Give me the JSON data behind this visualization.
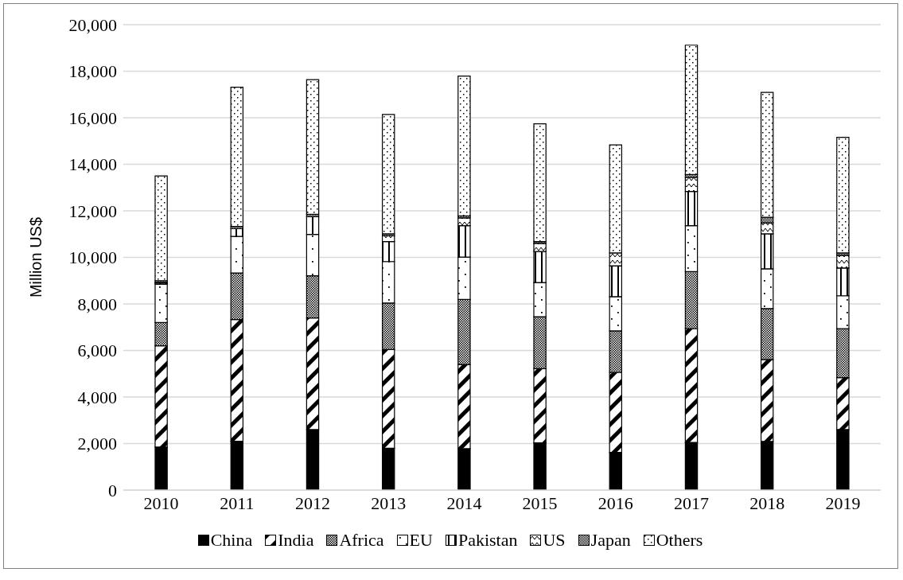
{
  "chart_data": {
    "type": "bar",
    "stacked": true,
    "ylabel": "Million US$",
    "categories": [
      "2010",
      "2011",
      "2012",
      "2013",
      "2014",
      "2015",
      "2016",
      "2017",
      "2018",
      "2019"
    ],
    "series": [
      {
        "name": "China",
        "color": "#000000",
        "values": [
          1850,
          2100,
          2600,
          1800,
          1780,
          2030,
          1620,
          2050,
          2090,
          2600
        ]
      },
      {
        "name": "India",
        "color": "#000000",
        "values": [
          4350,
          5230,
          4800,
          4240,
          3620,
          3190,
          3440,
          4890,
          3520,
          2230
        ]
      },
      {
        "name": "Africa",
        "color": "#000000",
        "values": [
          1000,
          2000,
          1810,
          2000,
          2790,
          2230,
          1780,
          2450,
          2190,
          2110
        ]
      },
      {
        "name": "EU",
        "color": "#000000",
        "values": [
          1650,
          1570,
          1780,
          1780,
          1820,
          1470,
          1470,
          1970,
          1710,
          1410
        ]
      },
      {
        "name": "Pakistan",
        "color": "#000000",
        "values": [
          50,
          330,
          760,
          860,
          1350,
          1330,
          1330,
          1470,
          1500,
          1190
        ]
      },
      {
        "name": "US",
        "color": "#000000",
        "values": [
          30,
          null,
          null,
          250,
          340,
          350,
          550,
          610,
          470,
          550
        ]
      },
      {
        "name": "Japan",
        "color": "#000000",
        "values": [
          70,
          100,
          100,
          80,
          80,
          80,
          null,
          120,
          240,
          100
        ]
      },
      {
        "name": "Others",
        "color": "#000000",
        "values": [
          4500,
          5980,
          5790,
          5130,
          6010,
          5060,
          4640,
          5560,
          5370,
          4970
        ]
      }
    ],
    "ylim": [
      0,
      20000
    ],
    "yticks": [
      0,
      {
        "value": 2000,
        "label": "2,000"
      },
      {
        "value": 4000,
        "label": "4,000"
      },
      {
        "value": 6000,
        "label": "6,000"
      },
      {
        "value": 8000,
        "label": "8,000"
      },
      {
        "value": 10000,
        "label": "10,000"
      },
      {
        "value": 12000,
        "label": "12,000"
      },
      {
        "value": 14000,
        "label": "14,000"
      },
      {
        "value": 16000,
        "label": "16,000"
      },
      {
        "value": 18000,
        "label": "18,000"
      },
      {
        "value": 20000,
        "label": "20,000"
      }
    ],
    "grid": "y",
    "legend": "bottom"
  }
}
